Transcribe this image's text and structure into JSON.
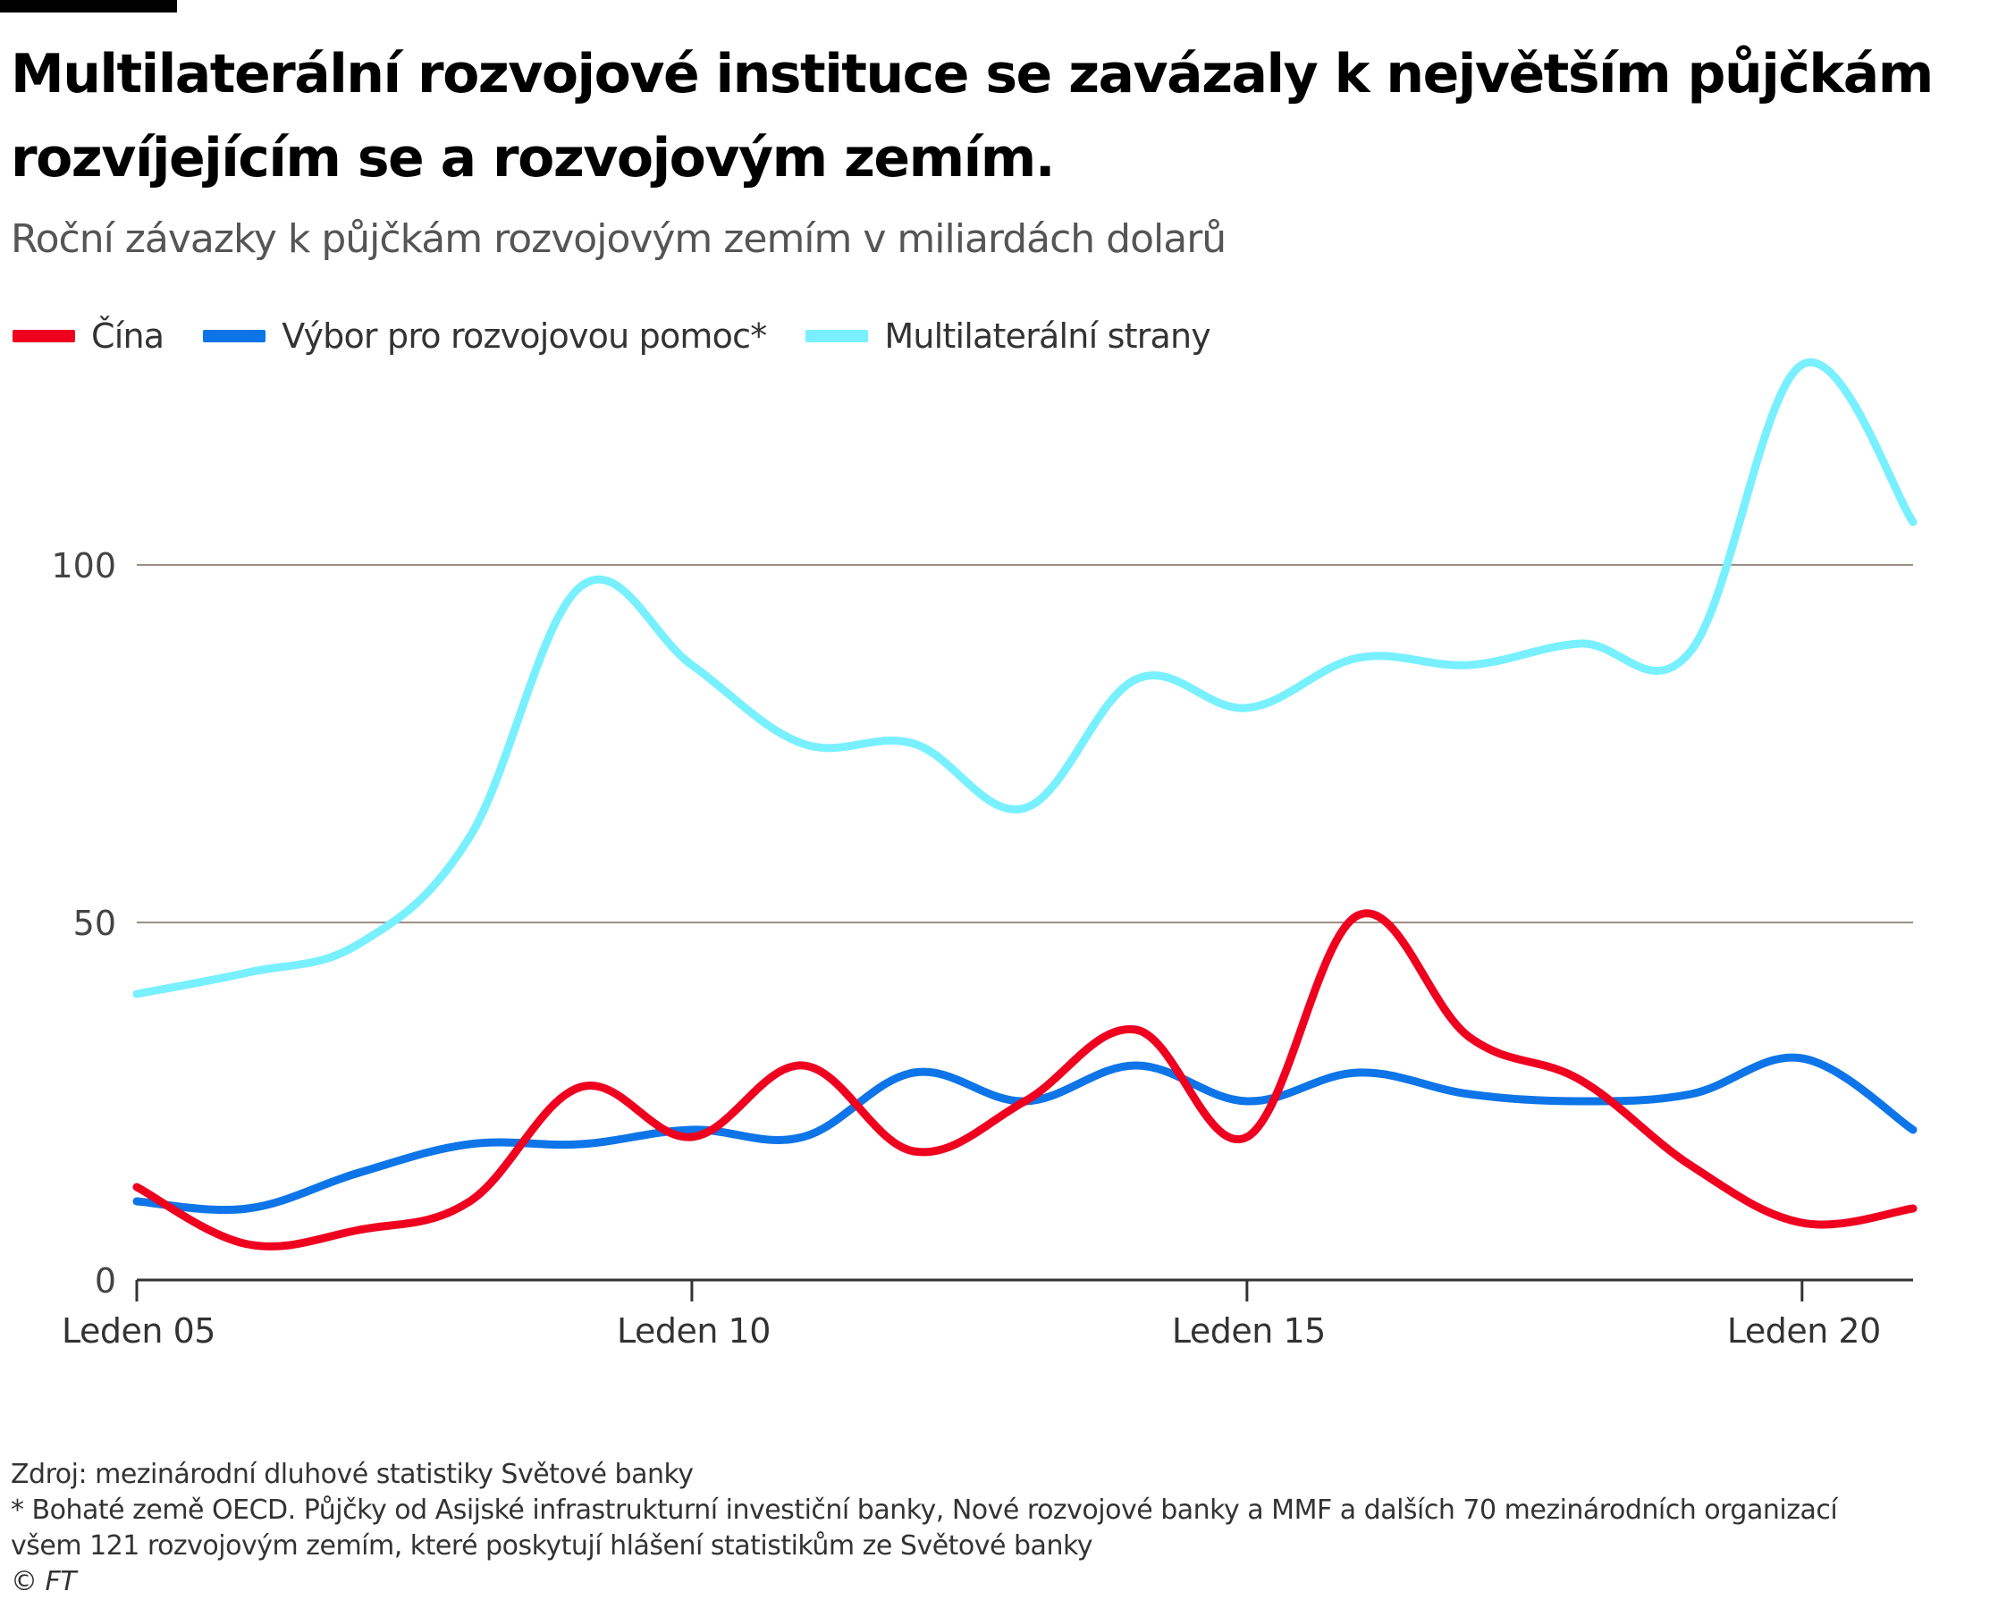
{
  "title": "Multilaterální rozvojové instituce se zavázaly k největším půjčkám rozvíjejícím se a rozvojovým zemím.",
  "subtitle": "Roční závazky k půjčkám rozvojovým zemím v miliardách dolarů",
  "legend": [
    {
      "label": "Čína",
      "color": "#f0001f"
    },
    {
      "label": "Výbor pro rozvojovou pomoc*",
      "color": "#0d75e8"
    },
    {
      "label": "Multilaterální strany",
      "color": "#78f0ff"
    }
  ],
  "footer": {
    "source": "Zdroj: mezinárodní dluhové statistiky Světové banky",
    "note_line1": "* Bohaté země OECD. Půjčky od Asijské infrastrukturní investiční banky, Nové rozvojové banky a MMF a dalších 70 mezinárodních organizací",
    "note_line2": "všem 121 rozvojovým zemím, které poskytují hlášení statistikům ze Světové banky",
    "credit": "© FT"
  },
  "chart_data": {
    "type": "line",
    "title": "Multilaterální rozvojové instituce se zavázaly k největším půjčkám rozvíjejícím se a rozvojovým zemím.",
    "subtitle": "Roční závazky k půjčkám rozvojovým zemím v miliardách dolarů",
    "xlabel": "",
    "ylabel": "",
    "x": [
      2005,
      2006,
      2007,
      2008,
      2009,
      2010,
      2011,
      2012,
      2013,
      2014,
      2015,
      2016,
      2017,
      2018,
      2019,
      2020,
      2021
    ],
    "x_ticks": [
      {
        "value": 2005,
        "label": "Leden 05"
      },
      {
        "value": 2010,
        "label": "Leden 10"
      },
      {
        "value": 2015,
        "label": "Leden 15"
      },
      {
        "value": 2020,
        "label": "Leden 20"
      }
    ],
    "xlim": [
      2005,
      2021
    ],
    "ylim": [
      0,
      128
    ],
    "y_ticks": [
      0,
      50,
      100
    ],
    "grid": "horizontal",
    "legend_position": "top-left",
    "series": [
      {
        "name": "Čína",
        "color": "#f0001f",
        "values": [
          13,
          5,
          7,
          11,
          27,
          20,
          30,
          18,
          25,
          35,
          20,
          51,
          34,
          28,
          16,
          8,
          10
        ]
      },
      {
        "name": "Výbor pro rozvojovou pomoc*",
        "color": "#0d75e8",
        "values": [
          11,
          10,
          15,
          19,
          19,
          21,
          20,
          29,
          25,
          30,
          25,
          29,
          26,
          25,
          26,
          31,
          21
        ]
      },
      {
        "name": "Multilaterální strany",
        "color": "#78f0ff",
        "values": [
          40,
          43,
          47,
          62,
          97,
          86,
          75,
          75,
          66,
          84,
          80,
          87,
          86,
          89,
          88,
          128,
          106
        ]
      }
    ]
  }
}
